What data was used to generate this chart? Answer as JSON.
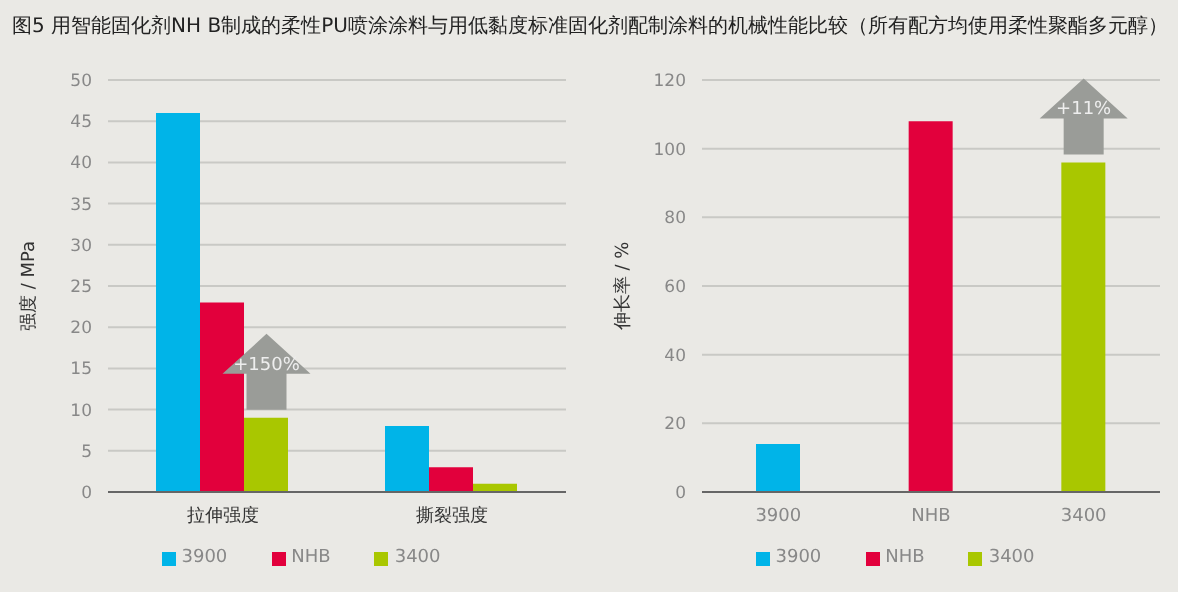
{
  "chart_data": [
    {
      "type": "bar",
      "title": "图5  用智能固化剂NH B制成的柔性PU喷涂涂料与用低黏度标准固化剂配制涂料的机械性能比较（所有配方均使用柔性聚酯多元醇）",
      "ylabel": "强度 / MPa",
      "categories": [
        "拉伸强度",
        "撕裂强度"
      ],
      "series": [
        {
          "name": "3900",
          "color": "#00b4e8",
          "values": [
            46,
            8
          ]
        },
        {
          "name": "NHB",
          "color": "#e2003c",
          "values": [
            23,
            3
          ]
        },
        {
          "name": "3400",
          "color": "#a9c700",
          "values": [
            9,
            1
          ]
        }
      ],
      "ylim": [
        0,
        50
      ],
      "yticks": [
        0,
        5,
        10,
        15,
        20,
        25,
        30,
        35,
        40,
        45,
        50
      ],
      "grid": "y",
      "legend": "bottom",
      "annotations": [
        "+150%"
      ]
    },
    {
      "type": "bar",
      "ylabel": "伸长率 / %",
      "categories": [
        "3900",
        "NHB",
        "3400"
      ],
      "stacked": true,
      "series": [
        {
          "name": "3900",
          "color": "#00b4e8",
          "values": [
            14,
            null,
            null
          ]
        },
        {
          "name": "NHB",
          "color": "#e2003c",
          "values": [
            null,
            108,
            null
          ]
        },
        {
          "name": "3400",
          "color": "#a9c700",
          "values": [
            null,
            null,
            96
          ]
        }
      ],
      "ylim": [
        0,
        120
      ],
      "yticks": [
        0,
        20,
        40,
        60,
        80,
        100,
        120
      ],
      "grid": "y",
      "legend": "bottom",
      "annotations": [
        "+11%"
      ]
    }
  ]
}
